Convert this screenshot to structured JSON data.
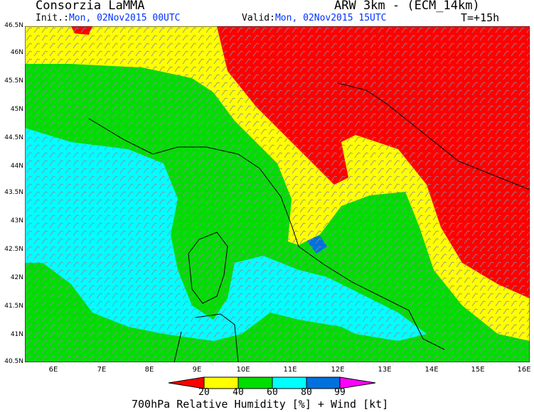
{
  "header": {
    "org": "Consorzia LaMMA",
    "model": "ARW 3km - (ECM_14km)",
    "init_label": "Init.:",
    "init_value": "Mon, 02Nov2015 00UTC",
    "valid_label": "Valid:",
    "valid_value": "Mon, 02Nov2015 15UTC",
    "lead": "T=+15h"
  },
  "axes": {
    "lat_labels": [
      "46.5N",
      "46N",
      "45.5N",
      "45N",
      "44.5N",
      "44N",
      "43.5N",
      "43N",
      "42.5N",
      "42N",
      "41.5N",
      "41N",
      "40.5N"
    ],
    "lon_labels": [
      "6E",
      "7E",
      "8E",
      "9E",
      "10E",
      "11E",
      "12E",
      "13E",
      "14E",
      "15E",
      "16E"
    ]
  },
  "colorbar": {
    "levels": [
      "20",
      "40",
      "60",
      "80",
      "99"
    ],
    "colors": [
      "#ff0000",
      "#ffff00",
      "#00dd00",
      "#00ffff",
      "#0070dd",
      "#ff00ff"
    ],
    "title": "700hPa Relative Humidity [%] + Wind [kt]"
  }
}
